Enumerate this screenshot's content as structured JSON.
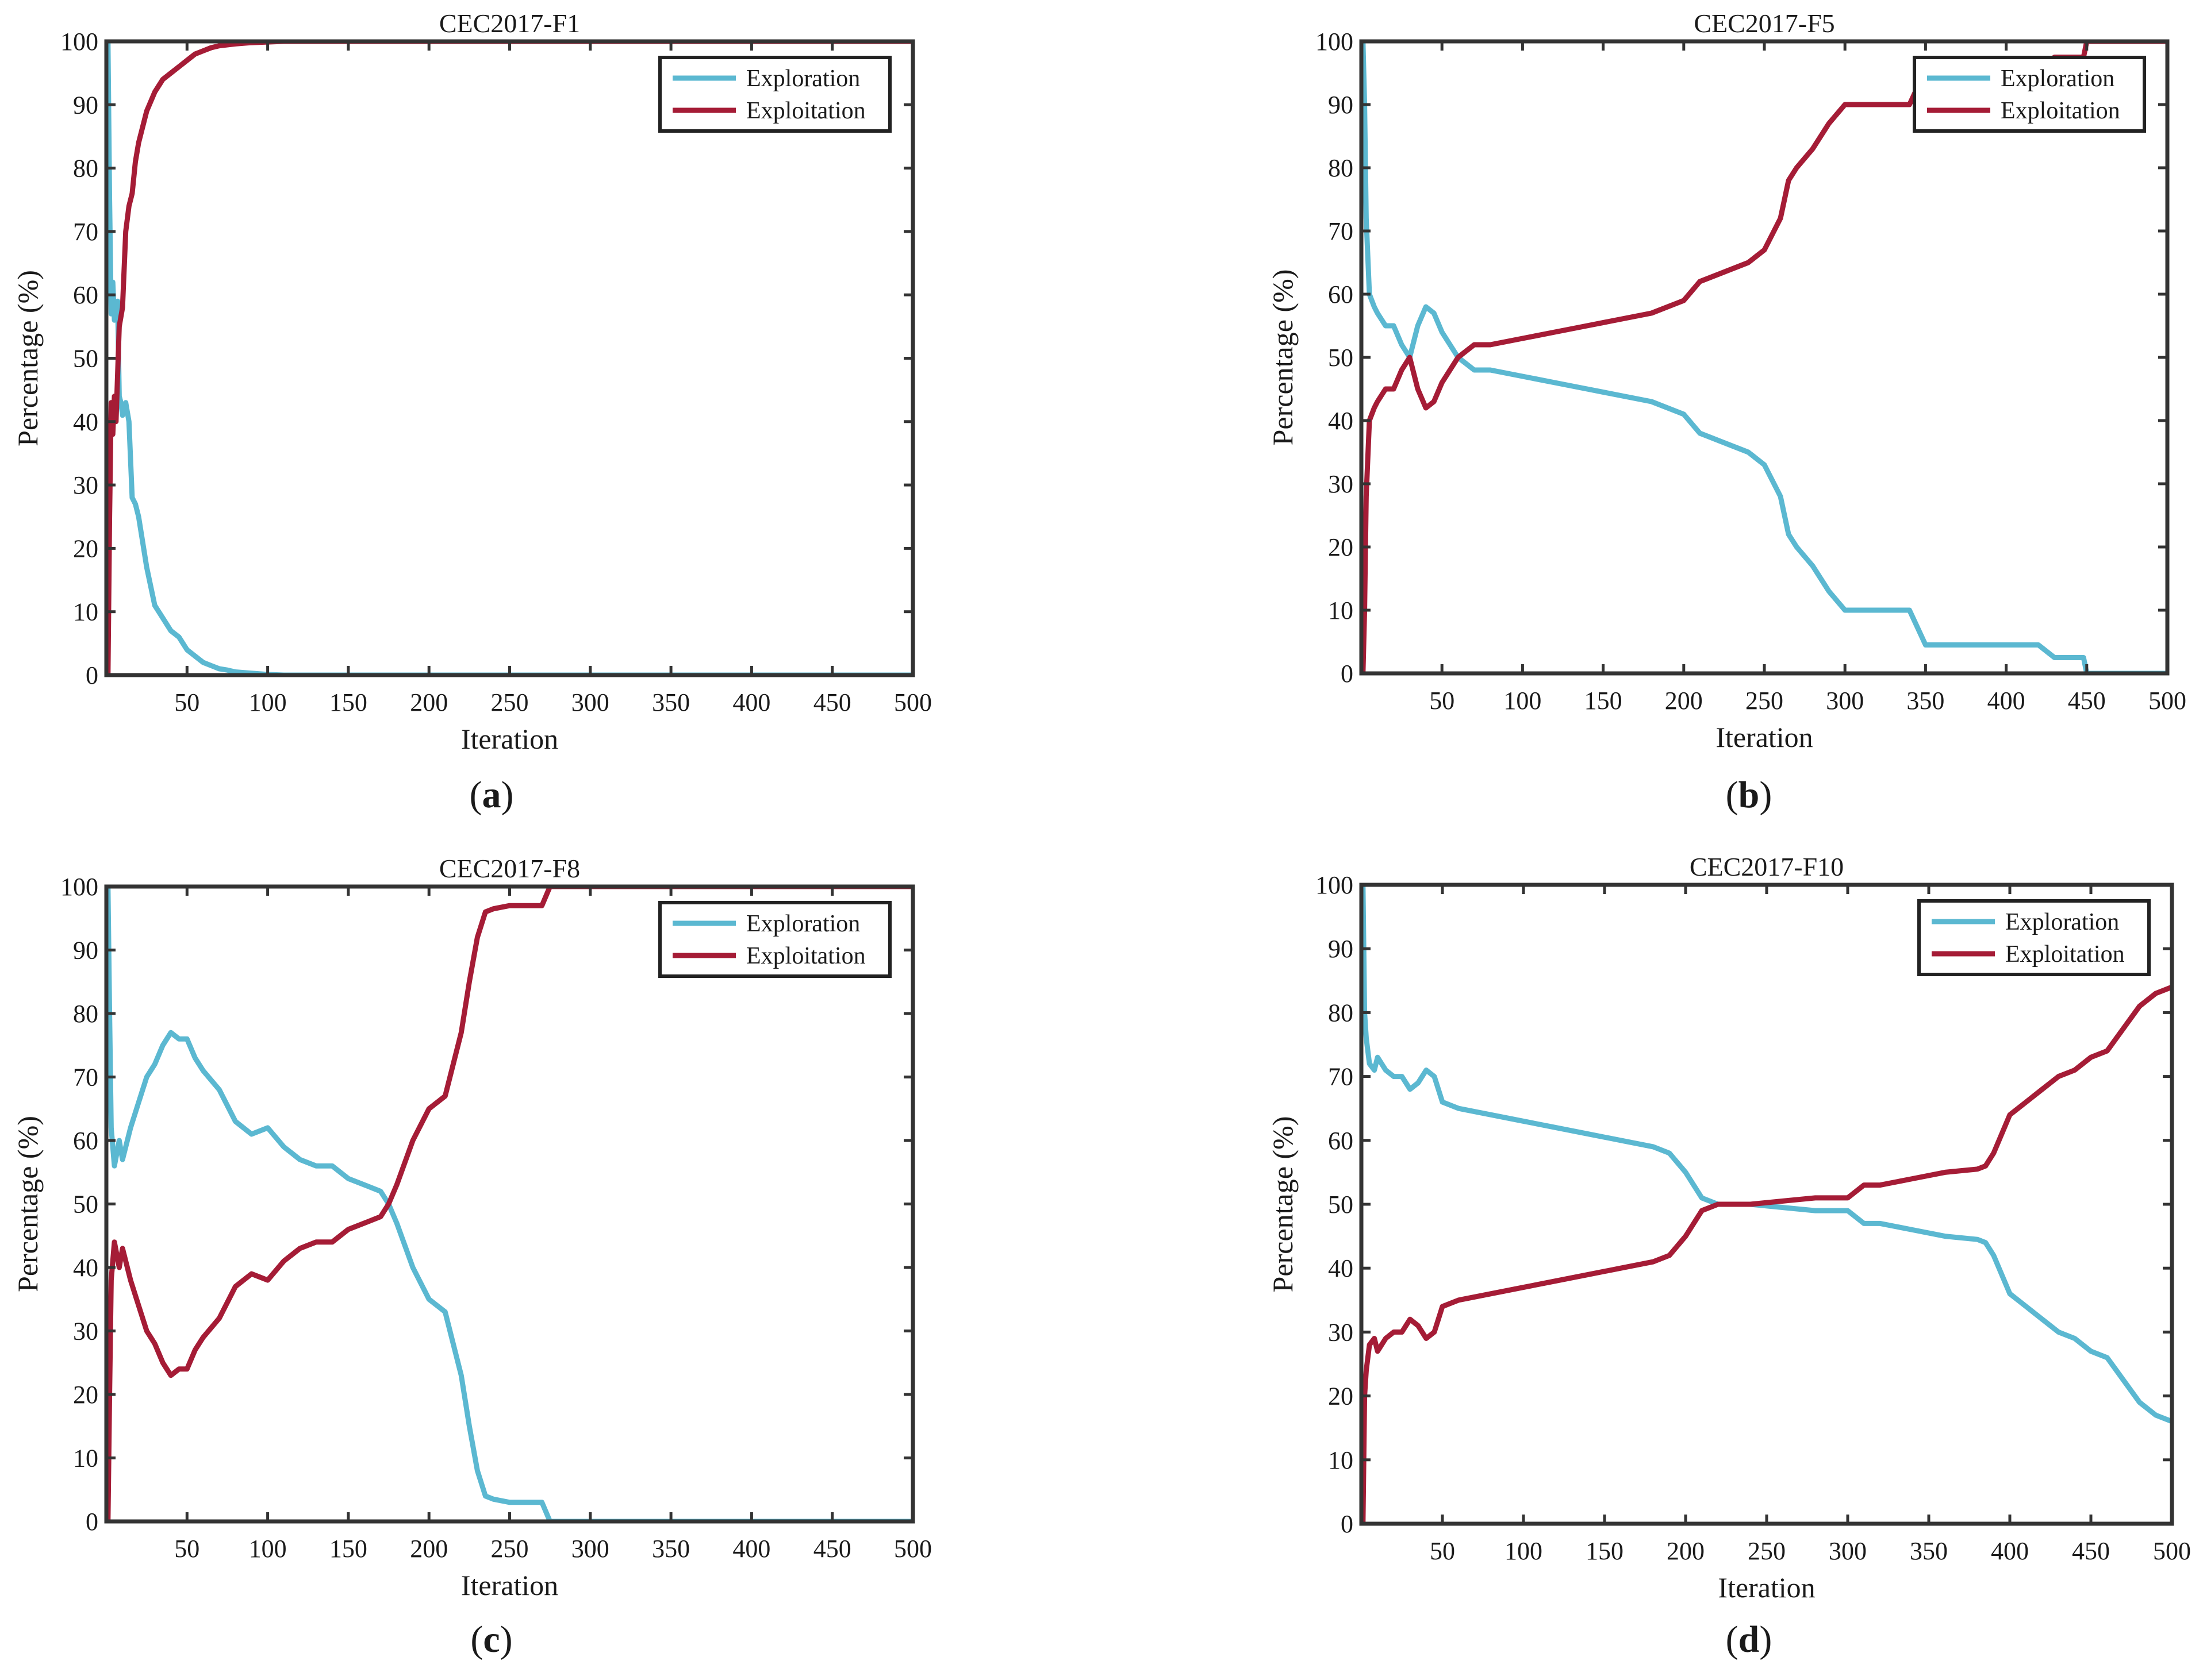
{
  "figure": {
    "colors": {
      "exploration": "#5bb8d1",
      "exploitation": "#a51c36",
      "axes": "#333333"
    }
  },
  "chart_data": [
    {
      "type": "line",
      "title": "CEC2017-F1",
      "caption": "a",
      "xlabel": "Iteration",
      "ylabel": "Percentage (%)",
      "xlim": [
        0,
        500
      ],
      "ylim": [
        0,
        100
      ],
      "xticks": [
        50,
        100,
        150,
        200,
        250,
        300,
        350,
        400,
        450,
        500
      ],
      "yticks": [
        0,
        10,
        20,
        30,
        40,
        50,
        60,
        70,
        80,
        90,
        100
      ],
      "legend": {
        "position": "top-right",
        "entries": [
          "Exploration",
          "Exploitation"
        ]
      },
      "series": [
        {
          "name": "Exploration",
          "color": "#5bb8d1",
          "x": [
            0,
            1,
            2,
            3,
            4,
            5,
            7,
            8,
            9,
            10,
            12,
            14,
            16,
            18,
            20,
            25,
            30,
            35,
            40,
            45,
            50,
            55,
            60,
            65,
            70,
            75,
            80,
            90,
            100,
            110,
            500
          ],
          "y": [
            100,
            100,
            75,
            57,
            62,
            56,
            59,
            44,
            43,
            41,
            43,
            40,
            28,
            27,
            25,
            17,
            11,
            9,
            7,
            6,
            4,
            3,
            2,
            1.5,
            1,
            0.8,
            0.5,
            0.3,
            0.1,
            0,
            0
          ]
        },
        {
          "name": "Exploitation",
          "color": "#a51c36",
          "x": [
            0,
            1,
            2,
            3,
            4,
            5,
            6,
            8,
            10,
            12,
            14,
            16,
            18,
            20,
            25,
            30,
            35,
            40,
            45,
            50,
            55,
            60,
            65,
            70,
            80,
            90,
            100,
            110,
            500
          ],
          "y": [
            0,
            0,
            25,
            43,
            38,
            44,
            40,
            55,
            58,
            70,
            74,
            76,
            81,
            84,
            89,
            92,
            94,
            95,
            96,
            97,
            98,
            98.5,
            99,
            99.3,
            99.6,
            99.8,
            99.9,
            100,
            100
          ]
        }
      ]
    },
    {
      "type": "line",
      "title": "CEC2017-F5",
      "caption": "b",
      "xlabel": "Iteration",
      "ylabel": "Percentage (%)",
      "xlim": [
        0,
        500
      ],
      "ylim": [
        0,
        100
      ],
      "xticks": [
        50,
        100,
        150,
        200,
        250,
        300,
        350,
        400,
        450,
        500
      ],
      "yticks": [
        0,
        10,
        20,
        30,
        40,
        50,
        60,
        70,
        80,
        90,
        100
      ],
      "legend": {
        "position": "top-right",
        "entries": [
          "Exploration",
          "Exploitation"
        ]
      },
      "series": [
        {
          "name": "Exploration",
          "color": "#5bb8d1",
          "x": [
            0,
            1,
            2,
            3,
            5,
            8,
            10,
            15,
            20,
            25,
            30,
            35,
            40,
            45,
            50,
            60,
            70,
            80,
            100,
            120,
            140,
            160,
            180,
            200,
            210,
            220,
            230,
            240,
            250,
            260,
            265,
            270,
            280,
            290,
            300,
            310,
            340,
            350,
            360,
            420,
            430,
            448,
            450,
            460,
            500
          ],
          "y": [
            100,
            100,
            90,
            72,
            60,
            58,
            57,
            55,
            55,
            52,
            50,
            55,
            58,
            57,
            54,
            50,
            48,
            48,
            47,
            46,
            45,
            44,
            43,
            41,
            38,
            37,
            36,
            35,
            33,
            28,
            22,
            20,
            17,
            13,
            10,
            10,
            10,
            4.5,
            4.5,
            4.5,
            2.5,
            2.5,
            0,
            0,
            0
          ]
        },
        {
          "name": "Exploitation",
          "color": "#a51c36",
          "x": [
            0,
            1,
            2,
            3,
            5,
            8,
            10,
            15,
            20,
            25,
            30,
            35,
            40,
            45,
            50,
            60,
            70,
            80,
            100,
            120,
            140,
            160,
            180,
            200,
            210,
            220,
            230,
            240,
            250,
            260,
            265,
            270,
            280,
            290,
            300,
            310,
            340,
            350,
            360,
            420,
            430,
            448,
            450,
            460,
            500
          ],
          "y": [
            0,
            0,
            10,
            28,
            40,
            42,
            43,
            45,
            45,
            48,
            50,
            45,
            42,
            43,
            46,
            50,
            52,
            52,
            53,
            54,
            55,
            56,
            57,
            59,
            62,
            63,
            64,
            65,
            67,
            72,
            78,
            80,
            83,
            87,
            90,
            90,
            90,
            95.5,
            95.5,
            95.5,
            97.5,
            97.5,
            100,
            100,
            100
          ]
        }
      ]
    },
    {
      "type": "line",
      "title": "CEC2017-F8",
      "caption": "c",
      "xlabel": "Iteration",
      "ylabel": "Percentage (%)",
      "xlim": [
        0,
        500
      ],
      "ylim": [
        0,
        100
      ],
      "xticks": [
        50,
        100,
        150,
        200,
        250,
        300,
        350,
        400,
        450,
        500
      ],
      "yticks": [
        0,
        10,
        20,
        30,
        40,
        50,
        60,
        70,
        80,
        90,
        100
      ],
      "legend": {
        "position": "top-right",
        "entries": [
          "Exploration",
          "Exploitation"
        ]
      },
      "series": [
        {
          "name": "Exploration",
          "color": "#5bb8d1",
          "x": [
            0,
            1,
            2,
            3,
            5,
            8,
            10,
            15,
            20,
            25,
            30,
            35,
            40,
            45,
            50,
            55,
            60,
            70,
            80,
            90,
            100,
            110,
            120,
            130,
            140,
            150,
            160,
            170,
            175,
            180,
            190,
            200,
            210,
            215,
            220,
            225,
            230,
            235,
            240,
            250,
            260,
            270,
            275,
            280,
            300,
            500
          ],
          "y": [
            100,
            100,
            80,
            62,
            56,
            60,
            57,
            62,
            66,
            70,
            72,
            75,
            77,
            76,
            76,
            73,
            71,
            68,
            63,
            61,
            62,
            59,
            57,
            56,
            56,
            54,
            53,
            52,
            50,
            47,
            40,
            35,
            33,
            28,
            23,
            15,
            8,
            4,
            3.5,
            3,
            3,
            3,
            0,
            0,
            0,
            0
          ]
        },
        {
          "name": "Exploitation",
          "color": "#a51c36",
          "x": [
            0,
            1,
            2,
            3,
            5,
            8,
            10,
            15,
            20,
            25,
            30,
            35,
            40,
            45,
            50,
            55,
            60,
            70,
            80,
            90,
            100,
            110,
            120,
            130,
            140,
            150,
            160,
            170,
            175,
            180,
            190,
            200,
            210,
            215,
            220,
            225,
            230,
            235,
            240,
            250,
            260,
            270,
            275,
            280,
            300,
            500
          ],
          "y": [
            0,
            0,
            20,
            38,
            44,
            40,
            43,
            38,
            34,
            30,
            28,
            25,
            23,
            24,
            24,
            27,
            29,
            32,
            37,
            39,
            38,
            41,
            43,
            44,
            44,
            46,
            47,
            48,
            50,
            53,
            60,
            65,
            67,
            72,
            77,
            85,
            92,
            96,
            96.5,
            97,
            97,
            97,
            100,
            100,
            100,
            100
          ]
        }
      ]
    },
    {
      "type": "line",
      "title": "CEC2017-F10",
      "caption": "d",
      "xlabel": "Iteration",
      "ylabel": "Percentage (%)",
      "xlim": [
        0,
        500
      ],
      "ylim": [
        0,
        100
      ],
      "xticks": [
        50,
        100,
        150,
        200,
        250,
        300,
        350,
        400,
        450,
        500
      ],
      "yticks": [
        0,
        10,
        20,
        30,
        40,
        50,
        60,
        70,
        80,
        90,
        100
      ],
      "legend": {
        "position": "top-right",
        "entries": [
          "Exploration",
          "Exploitation"
        ]
      },
      "series": [
        {
          "name": "Exploration",
          "color": "#5bb8d1",
          "x": [
            0,
            1,
            2,
            3,
            5,
            8,
            10,
            15,
            20,
            25,
            30,
            35,
            40,
            45,
            50,
            60,
            80,
            100,
            120,
            140,
            160,
            180,
            190,
            200,
            210,
            220,
            240,
            260,
            280,
            300,
            310,
            320,
            340,
            360,
            380,
            385,
            390,
            400,
            410,
            420,
            430,
            440,
            450,
            460,
            480,
            490,
            500
          ],
          "y": [
            100,
            100,
            80,
            76,
            72,
            71,
            73,
            71,
            70,
            70,
            68,
            69,
            71,
            70,
            66,
            65,
            64,
            63,
            62,
            61,
            60,
            59,
            58,
            55,
            51,
            50,
            50,
            49.5,
            49,
            49,
            47,
            47,
            46,
            45,
            44.5,
            44,
            42,
            36,
            34,
            32,
            30,
            29,
            27,
            26,
            19,
            17,
            16
          ]
        },
        {
          "name": "Exploitation",
          "color": "#a51c36",
          "x": [
            0,
            1,
            2,
            3,
            5,
            8,
            10,
            15,
            20,
            25,
            30,
            35,
            40,
            45,
            50,
            60,
            80,
            100,
            120,
            140,
            160,
            180,
            190,
            200,
            210,
            220,
            240,
            260,
            280,
            300,
            310,
            320,
            340,
            360,
            380,
            385,
            390,
            400,
            410,
            420,
            430,
            440,
            450,
            460,
            480,
            490,
            500
          ],
          "y": [
            0,
            0,
            20,
            24,
            28,
            29,
            27,
            29,
            30,
            30,
            32,
            31,
            29,
            30,
            34,
            35,
            36,
            37,
            38,
            39,
            40,
            41,
            42,
            45,
            49,
            50,
            50,
            50.5,
            51,
            51,
            53,
            53,
            54,
            55,
            55.5,
            56,
            58,
            64,
            66,
            68,
            70,
            71,
            73,
            74,
            81,
            83,
            84
          ]
        }
      ]
    }
  ]
}
